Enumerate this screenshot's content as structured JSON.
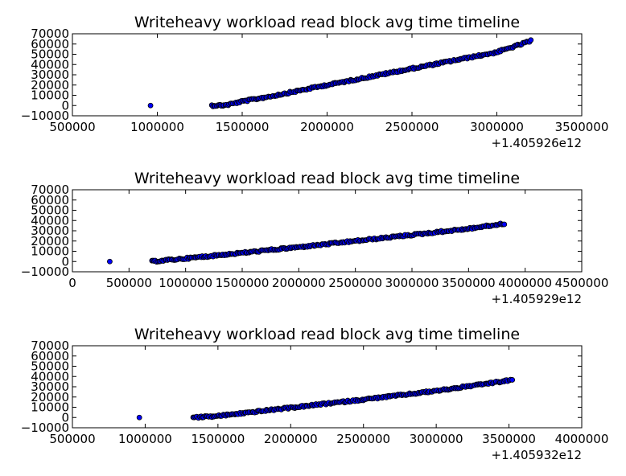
{
  "chart_data": [
    {
      "type": "scatter",
      "title": "Writeheavy workload read block avg time timeline",
      "xlabel": "",
      "ylabel": "",
      "x_offset_label": "+1.405926e12",
      "xlim": [
        500000,
        3500000
      ],
      "ylim": [
        -10000,
        70000
      ],
      "xticks": [
        "500000",
        "1000000",
        "1500000",
        "2000000",
        "2500000",
        "3000000",
        "3500000"
      ],
      "yticks": [
        "−10000",
        "0",
        "10000",
        "20000",
        "30000",
        "40000",
        "50000",
        "60000",
        "70000"
      ],
      "marker_color": "#0000ff",
      "grid": false,
      "series": [
        {
          "outlier": {
            "x": 960000,
            "y": 0
          },
          "trend": [
            {
              "x": 1320000,
              "y": 0
            },
            {
              "x": 1400000,
              "y": 300
            },
            {
              "x": 1500000,
              "y": 4000
            },
            {
              "x": 1700000,
              "y": 10000
            },
            {
              "x": 2000000,
              "y": 20000
            },
            {
              "x": 2500000,
              "y": 36000
            },
            {
              "x": 3000000,
              "y": 52000
            },
            {
              "x": 3200000,
              "y": 63000
            }
          ]
        }
      ]
    },
    {
      "type": "scatter",
      "title": "Writeheavy workload read block avg time timeline",
      "xlabel": "",
      "ylabel": "",
      "x_offset_label": "+1.405929e12",
      "xlim": [
        0,
        4500000
      ],
      "ylim": [
        -10000,
        70000
      ],
      "xticks": [
        "0",
        "500000",
        "1000000",
        "1500000",
        "2000000",
        "2500000",
        "3000000",
        "3500000",
        "4000000",
        "4500000"
      ],
      "yticks": [
        "−10000",
        "0",
        "10000",
        "20000",
        "30000",
        "40000",
        "50000",
        "60000",
        "70000"
      ],
      "marker_color": "#0000ff",
      "grid": false,
      "series": [
        {
          "outlier": {
            "x": 330000,
            "y": 0
          },
          "trend": [
            {
              "x": 700000,
              "y": 0
            },
            {
              "x": 1000000,
              "y": 3000
            },
            {
              "x": 1500000,
              "y": 8500
            },
            {
              "x": 2000000,
              "y": 14000
            },
            {
              "x": 2500000,
              "y": 20000
            },
            {
              "x": 3000000,
              "y": 26000
            },
            {
              "x": 3500000,
              "y": 32000
            },
            {
              "x": 3820000,
              "y": 37000
            }
          ]
        }
      ]
    },
    {
      "type": "scatter",
      "title": "Writeheavy workload read block avg time timeline",
      "xlabel": "",
      "ylabel": "",
      "x_offset_label": "+1.405932e12",
      "xlim": [
        500000,
        4000000
      ],
      "ylim": [
        -10000,
        70000
      ],
      "xticks": [
        "500000",
        "1000000",
        "1500000",
        "2000000",
        "2500000",
        "3000000",
        "3500000",
        "4000000"
      ],
      "yticks": [
        "−10000",
        "0",
        "10000",
        "20000",
        "30000",
        "40000",
        "50000",
        "60000",
        "70000"
      ],
      "marker_color": "#0000ff",
      "grid": false,
      "series": [
        {
          "outlier": {
            "x": 960000,
            "y": 0
          },
          "trend": [
            {
              "x": 1330000,
              "y": 0
            },
            {
              "x": 1500000,
              "y": 1500
            },
            {
              "x": 2000000,
              "y": 9500
            },
            {
              "x": 2500000,
              "y": 17500
            },
            {
              "x": 3000000,
              "y": 26000
            },
            {
              "x": 3520000,
              "y": 36500
            }
          ]
        }
      ]
    }
  ]
}
